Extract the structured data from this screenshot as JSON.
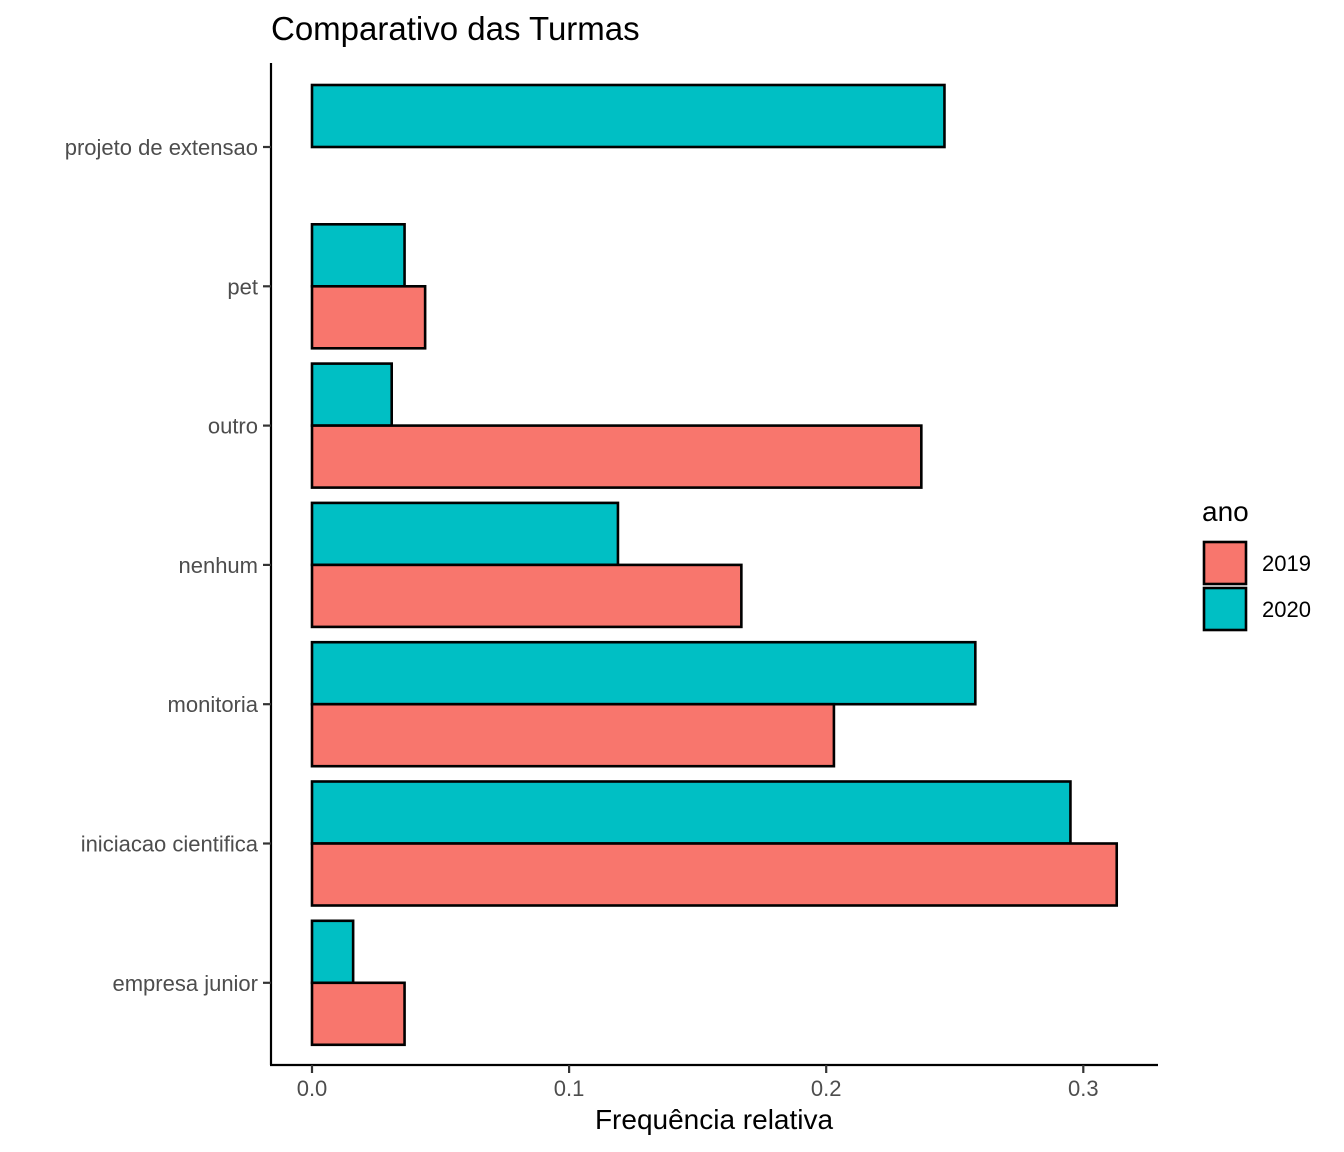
{
  "chart_data": {
    "type": "bar",
    "orientation": "horizontal",
    "title": "Comparativo das Turmas",
    "xlabel": "Frequência relativa",
    "ylabel": "",
    "xlim": [
      -0.016,
      0.329
    ],
    "x_ticks": [
      0.0,
      0.1,
      0.2,
      0.3
    ],
    "x_tick_labels": [
      "0.0",
      "0.1",
      "0.2",
      "0.3"
    ],
    "categories": [
      "projeto de extensao",
      "pet",
      "outro",
      "nenhum",
      "monitoria",
      "iniciacao cientifica",
      "empresa junior"
    ],
    "series": [
      {
        "name": "2019",
        "color": "#F8766D",
        "values": [
          0.0,
          0.044,
          0.237,
          0.167,
          0.203,
          0.313,
          0.036
        ]
      },
      {
        "name": "2020",
        "color": "#00BFC4",
        "values": [
          0.246,
          0.036,
          0.031,
          0.119,
          0.258,
          0.295,
          0.016
        ]
      }
    ],
    "legend": {
      "title": "ano",
      "position": "right",
      "entries": [
        "2019",
        "2020"
      ]
    },
    "grid": false
  }
}
